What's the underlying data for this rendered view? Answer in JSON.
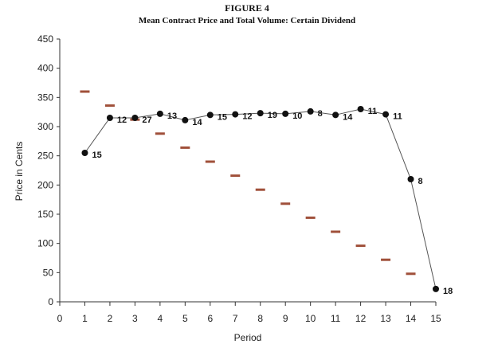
{
  "chart_data": {
    "type": "line",
    "title": "FIGURE 4",
    "subtitle": "Mean Contract Price and Total Volume: Certain Dividend",
    "xlabel": "Period",
    "ylabel": "Price in Cents",
    "xlim": [
      0,
      15
    ],
    "ylim": [
      0,
      450
    ],
    "x_ticks": [
      0,
      1,
      2,
      3,
      4,
      5,
      6,
      7,
      8,
      9,
      10,
      11,
      12,
      13,
      14,
      15
    ],
    "y_ticks": [
      0,
      50,
      100,
      150,
      200,
      250,
      300,
      350,
      400,
      450
    ],
    "grid": false,
    "legend": "none",
    "price_color": "#111111",
    "dividend_color": "#a0503a",
    "series": [
      {
        "x": [
          1,
          2,
          3,
          4,
          5,
          6,
          7,
          8,
          9,
          10,
          11,
          12,
          13,
          14,
          15
        ],
        "values": [
          255,
          315,
          315,
          322,
          311,
          320,
          321,
          323,
          322,
          326,
          320,
          330,
          321,
          210,
          22
        ],
        "volume_labels": [
          "15",
          "12",
          "27",
          "13",
          "14",
          "15",
          "12",
          "19",
          "10",
          "8",
          "14",
          "11",
          "11",
          "8",
          "18"
        ]
      },
      {
        "x": [
          1,
          2,
          3,
          4,
          5,
          6,
          7,
          8,
          9,
          10,
          11,
          12,
          13,
          14
        ],
        "values": [
          360,
          336,
          312,
          288,
          264,
          240,
          216,
          192,
          168,
          144,
          120,
          96,
          72,
          48
        ]
      }
    ]
  }
}
